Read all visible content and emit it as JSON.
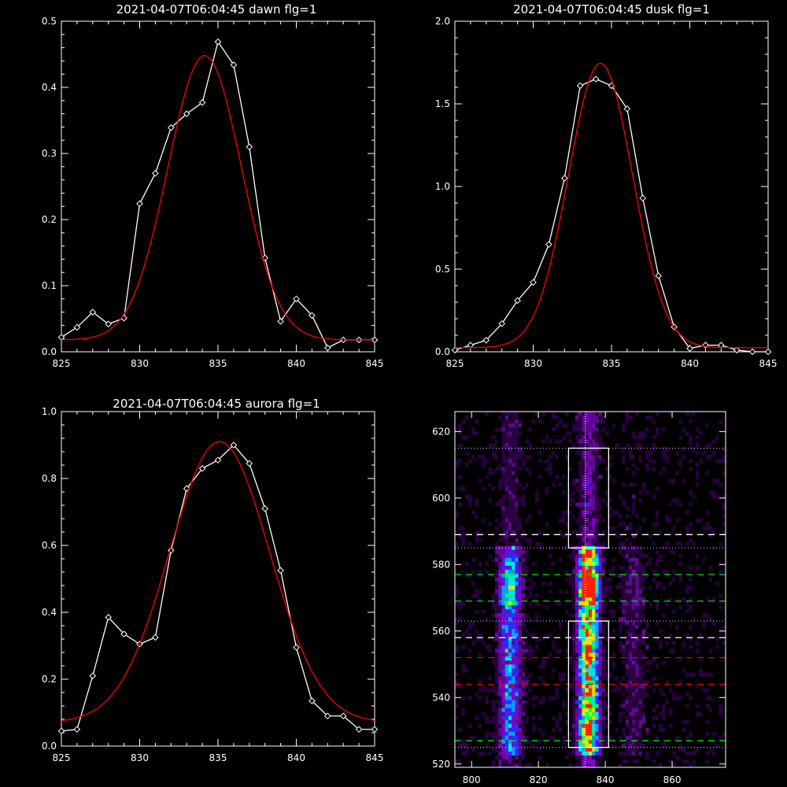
{
  "chart_data": [
    {
      "id": "dawn",
      "type": "line",
      "title": "2021-04-07T06:04:45 dawn flg=1",
      "xlim": [
        825,
        845
      ],
      "ylim": [
        0,
        0.5
      ],
      "xticks": [
        "825",
        "830",
        "835",
        "840",
        "845"
      ],
      "yticks": [
        "0.0",
        "0.1",
        "0.2",
        "0.3",
        "0.4",
        "0.5"
      ],
      "grid": false,
      "series": [
        {
          "style": "white-diamonds",
          "color": "#ffffff",
          "x": [
            825,
            826,
            827,
            828,
            829,
            830,
            831,
            832,
            833,
            834,
            835,
            836,
            837,
            838,
            839,
            840,
            841,
            842,
            843,
            844,
            845
          ],
          "y": [
            0.022,
            0.037,
            0.06,
            0.042,
            0.051,
            0.224,
            0.27,
            0.339,
            0.36,
            0.377,
            0.469,
            0.434,
            0.31,
            0.142,
            0.046,
            0.08,
            0.055,
            0.006,
            0.018,
            0.018,
            0.018
          ]
        },
        {
          "style": "gaussian-fit",
          "color": "#ff0000",
          "gauss": {
            "amplitude": 0.43,
            "center": 834.15,
            "sigma": 2.35,
            "baseline": 0.018
          }
        }
      ]
    },
    {
      "id": "dusk",
      "type": "line",
      "title": "2021-04-07T06:04:45 dusk flg=1",
      "xlim": [
        825,
        845
      ],
      "ylim": [
        0,
        2.0
      ],
      "xticks": [
        "825",
        "830",
        "835",
        "840",
        "845"
      ],
      "yticks": [
        "0.0",
        "0.5",
        "1.0",
        "1.5",
        "2.0"
      ],
      "grid": false,
      "series": [
        {
          "style": "white-diamonds",
          "color": "#ffffff",
          "x": [
            825,
            826,
            827,
            828,
            829,
            830,
            831,
            832,
            833,
            834,
            835,
            836,
            837,
            838,
            839,
            840,
            841,
            842,
            843,
            844,
            845
          ],
          "y": [
            0.01,
            0.04,
            0.07,
            0.17,
            0.31,
            0.42,
            0.65,
            1.05,
            1.61,
            1.65,
            1.61,
            1.47,
            0.93,
            0.46,
            0.15,
            0.02,
            0.04,
            0.04,
            0.01,
            -0.01,
            0.0
          ]
        },
        {
          "style": "gaussian-fit",
          "color": "#ff0000",
          "gauss": {
            "amplitude": 1.72,
            "center": 834.3,
            "sigma": 2.05,
            "baseline": 0.025
          }
        }
      ]
    },
    {
      "id": "aurora",
      "type": "line",
      "title": "2021-04-07T06:04:45 aurora flg=1",
      "xlim": [
        825,
        845
      ],
      "ylim": [
        0,
        1.0
      ],
      "xticks": [
        "825",
        "830",
        "835",
        "840",
        "845"
      ],
      "yticks": [
        "0.0",
        "0.2",
        "0.4",
        "0.6",
        "0.8",
        "1.0"
      ],
      "grid": false,
      "series": [
        {
          "style": "white-diamonds",
          "color": "#ffffff",
          "x": [
            825,
            826,
            827,
            828,
            829,
            830,
            831,
            832,
            833,
            834,
            835,
            836,
            837,
            838,
            839,
            840,
            841,
            842,
            843,
            844,
            845
          ],
          "y": [
            0.045,
            0.05,
            0.21,
            0.385,
            0.335,
            0.305,
            0.325,
            0.585,
            0.77,
            0.83,
            0.855,
            0.9,
            0.845,
            0.71,
            0.525,
            0.295,
            0.135,
            0.09,
            0.09,
            0.05,
            0.05
          ]
        },
        {
          "style": "gaussian-fit",
          "color": "#ff0000",
          "gauss": {
            "amplitude": 0.84,
            "center": 835.1,
            "sigma": 3.2,
            "baseline": 0.07
          }
        }
      ]
    },
    {
      "id": "spectrogram",
      "type": "heatmap",
      "title": "",
      "xlim": [
        795,
        876
      ],
      "ylim": [
        519,
        626
      ],
      "xticks": [
        "800",
        "820",
        "840",
        "860"
      ],
      "yticks": [
        "520",
        "540",
        "560",
        "580",
        "600",
        "620"
      ],
      "colormap": [
        "#000000",
        "#2a0040",
        "#5a0a8a",
        "#7f00c8",
        "#2a2cff",
        "#00a0ff",
        "#00e8d8",
        "#00ff50",
        "#c0ff00",
        "#ffd000",
        "#ff2000"
      ],
      "emission_columns": [
        {
          "center": 811.5,
          "width": 2.3,
          "strength": 0.5
        },
        {
          "center": 835,
          "width": 2.1,
          "strength": 1.0
        },
        {
          "center": 848.5,
          "width": 2.5,
          "strength": 0.14
        }
      ],
      "vertical_line_x": 834,
      "boxes": [
        {
          "x0": 829,
          "x1": 841,
          "y0": 585,
          "y1": 615
        },
        {
          "x0": 829,
          "x1": 841,
          "y0": 525,
          "y1": 563
        }
      ],
      "dotted_h_lines": [
        615,
        585,
        563,
        525
      ],
      "dashed_lines": [
        {
          "y": 589,
          "color": "#ffffff"
        },
        {
          "y": 558,
          "color": "#ffffff"
        },
        {
          "y": 577,
          "color": "#00e000"
        },
        {
          "y": 569,
          "color": "#00e000"
        },
        {
          "y": 527,
          "color": "#00e000"
        },
        {
          "y": 552,
          "color": "#e00000"
        },
        {
          "y": 544,
          "color": "#e00000"
        }
      ]
    }
  ]
}
